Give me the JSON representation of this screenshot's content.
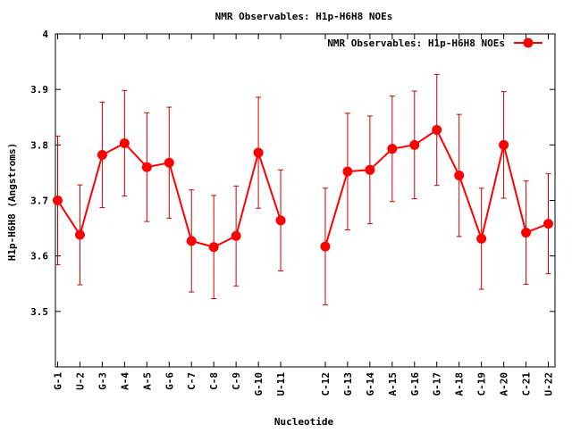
{
  "chart_data": {
    "type": "line",
    "title": "NMR Observables: H1p-H6H8 NOEs",
    "xlabel": "Nucleotide",
    "ylabel": "H1p-H6H8 (Angstroms)",
    "ylim": [
      3.4,
      4.0
    ],
    "yticks": [
      "3.5",
      "3.6",
      "3.7",
      "3.8",
      "3.9",
      "4"
    ],
    "ytick_values": [
      3.5,
      3.6,
      3.7,
      3.8,
      3.9,
      4.0
    ],
    "legend_position": "top-right",
    "grid": false,
    "color": "#ff0000",
    "errorbar_color": "#cc0000",
    "categories": [
      "G-1",
      "U-2",
      "G-3",
      "A-4",
      "A-5",
      "G-6",
      "C-7",
      "C-8",
      "C-9",
      "G-10",
      "U-11",
      "C-12",
      "G-13",
      "G-14",
      "A-15",
      "G-16",
      "G-17",
      "A-18",
      "C-19",
      "A-20",
      "C-21",
      "U-22"
    ],
    "series": [
      {
        "name": "NMR Observables: H1p-H6H8 NOEs",
        "segments": [
          {
            "x": [
              1,
              2,
              3,
              4,
              5,
              6,
              7,
              8,
              9,
              10,
              11
            ],
            "y": [
              3.7,
              3.638,
              3.782,
              3.803,
              3.76,
              3.768,
              3.627,
              3.616,
              3.636,
              3.786,
              3.664
            ],
            "err": [
              0.116,
              0.09,
              0.095,
              0.095,
              0.098,
              0.1,
              0.092,
              0.093,
              0.09,
              0.1,
              0.091
            ]
          },
          {
            "x": [
              13,
              14,
              15,
              16,
              17,
              18,
              19,
              20,
              21,
              22,
              23
            ],
            "y": [
              3.617,
              3.752,
              3.755,
              3.793,
              3.8,
              3.827,
              3.745,
              3.631,
              3.8,
              3.642,
              3.658
            ],
            "err": [
              0.105,
              0.105,
              0.097,
              0.095,
              0.097,
              0.1,
              0.11,
              0.091,
              0.096,
              0.093,
              0.09
            ]
          }
        ]
      }
    ]
  }
}
